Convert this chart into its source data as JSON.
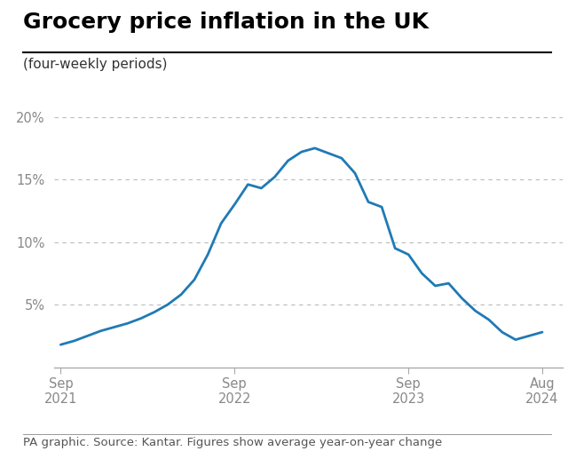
{
  "title": "Grocery price inflation in the UK",
  "subtitle": "(four-weekly periods)",
  "footer": "PA graphic. Source: Kantar. Figures show average year-on-year change",
  "line_color": "#1f7ab5",
  "background_color": "#ffffff",
  "title_fontsize": 18,
  "subtitle_fontsize": 11,
  "footer_fontsize": 9.5,
  "ytick_fontsize": 10.5,
  "xtick_fontsize": 10.5,
  "x_tick_labels": [
    "Sep\n2021",
    "Sep\n2022",
    "Sep\n2023",
    "Aug\n2024"
  ],
  "x_tick_positions": [
    0,
    13,
    26,
    36
  ],
  "yticks": [
    5,
    10,
    15,
    20
  ],
  "ylim": [
    0,
    22
  ],
  "xlim": [
    -0.5,
    37.5
  ],
  "data_x": [
    0,
    1,
    2,
    3,
    4,
    5,
    6,
    7,
    8,
    9,
    10,
    11,
    12,
    13,
    14,
    15,
    16,
    17,
    18,
    19,
    20,
    21,
    22,
    23,
    24,
    25,
    26,
    27,
    28,
    29,
    30,
    31,
    32,
    33,
    34,
    35,
    36
  ],
  "data_y": [
    1.8,
    2.1,
    2.5,
    2.9,
    3.2,
    3.5,
    3.9,
    4.4,
    5.0,
    5.8,
    7.0,
    9.0,
    11.5,
    13.0,
    14.6,
    14.3,
    15.2,
    16.5,
    17.2,
    17.5,
    17.1,
    16.7,
    15.5,
    13.2,
    12.8,
    9.5,
    9.0,
    7.5,
    6.5,
    6.7,
    5.5,
    4.5,
    3.8,
    2.8,
    2.2,
    2.5,
    2.8
  ],
  "title_color": "#000000",
  "subtitle_color": "#333333",
  "footer_color": "#555555",
  "tick_label_color": "#888888",
  "grid_color": "#bbbbbb",
  "spine_color": "#aaaaaa"
}
